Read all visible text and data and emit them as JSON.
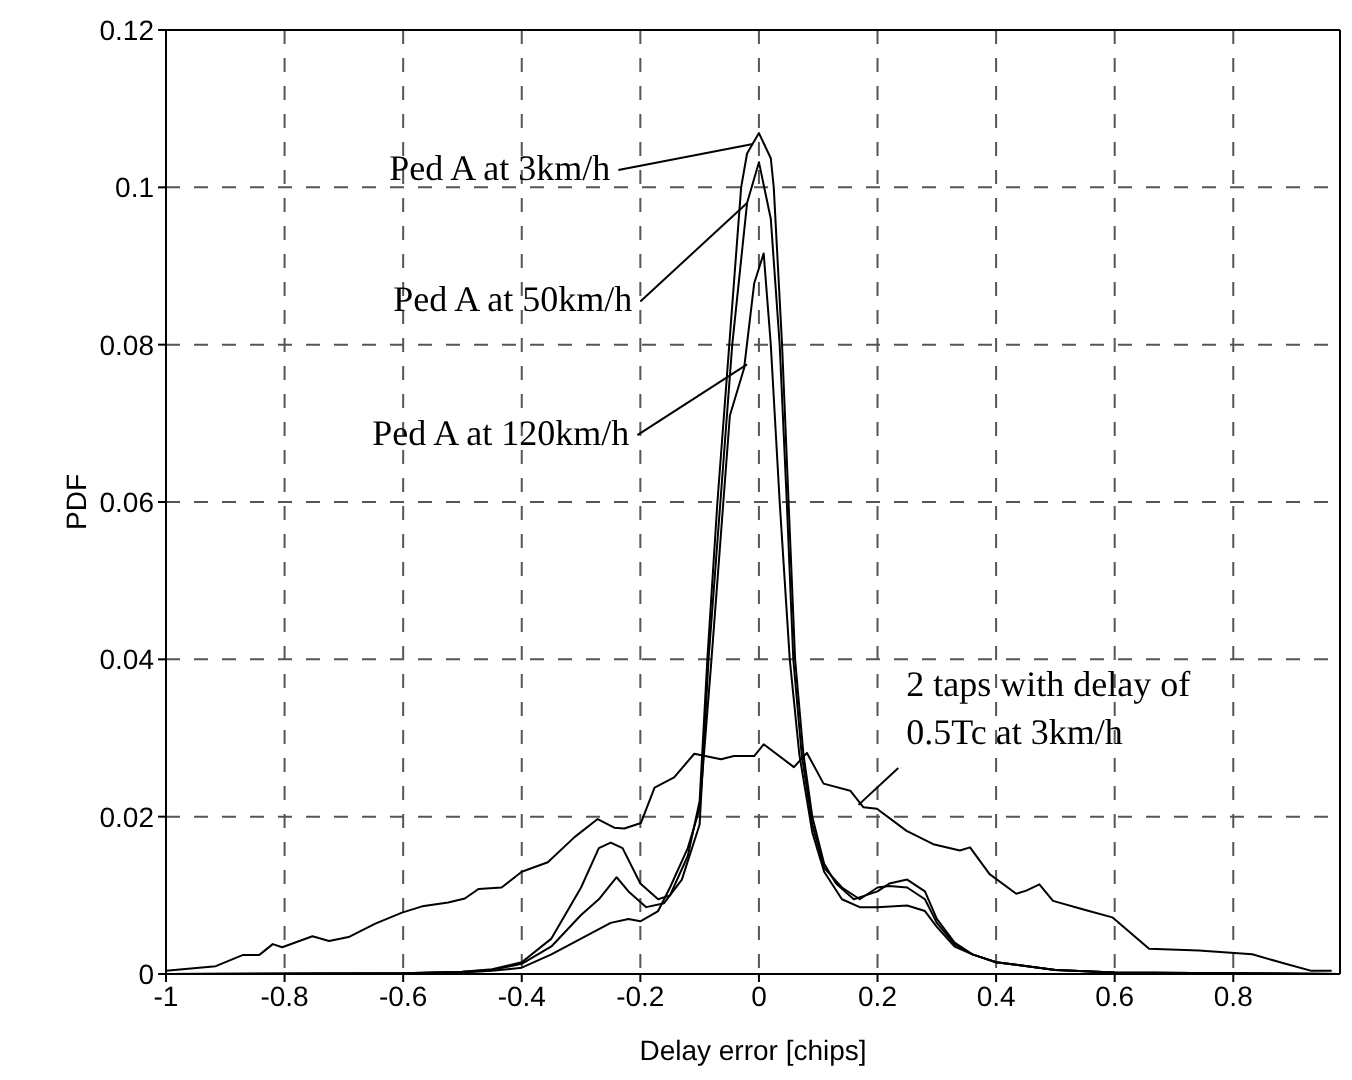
{
  "chart_data": {
    "type": "line",
    "xlabel": "Delay error [chips]",
    "ylabel": "PDF",
    "xlim": [
      -1,
      0.98
    ],
    "xticks": [
      -1,
      -0.8,
      -0.6,
      -0.4,
      -0.2,
      0,
      0.2,
      0.4,
      0.6,
      0.8
    ],
    "ylim": [
      0,
      0.12
    ],
    "yticks": [
      0,
      0.02,
      0.04,
      0.06,
      0.08,
      0.1,
      0.12
    ],
    "grid": true,
    "series": [
      {
        "name": "Ped A at 3km/h",
        "color": "#000000",
        "x": [
          -1,
          -0.6,
          -0.5,
          -0.45,
          -0.4,
          -0.35,
          -0.3,
          -0.27,
          -0.25,
          -0.23,
          -0.2,
          -0.17,
          -0.15,
          -0.12,
          -0.1,
          -0.087,
          -0.07,
          -0.05,
          -0.03,
          -0.02,
          0,
          0.02,
          0.025,
          0.039,
          0.05,
          0.061,
          0.075,
          0.09,
          0.11,
          0.13,
          0.16,
          0.18,
          0.2,
          0.22,
          0.25,
          0.28,
          0.3,
          0.33,
          0.36,
          0.4,
          0.5,
          0.6,
          0.98
        ],
        "values": [
          0,
          0.0001,
          0.0003,
          0.0006,
          0.0015,
          0.0045,
          0.011,
          0.016,
          0.0167,
          0.016,
          0.0115,
          0.0095,
          0.01,
          0.015,
          0.022,
          0.04,
          0.06,
          0.08,
          0.1,
          0.1043,
          0.1069,
          0.1037,
          0.1,
          0.08,
          0.06,
          0.04,
          0.028,
          0.02,
          0.014,
          0.0115,
          0.0095,
          0.01,
          0.0105,
          0.0115,
          0.012,
          0.0105,
          0.007,
          0.004,
          0.0025,
          0.0015,
          0.0005,
          0.0002,
          0
        ]
      },
      {
        "name": "Ped A at 50km/h",
        "color": "#000000",
        "x": [
          -1,
          -0.6,
          -0.5,
          -0.45,
          -0.4,
          -0.35,
          -0.3,
          -0.27,
          -0.24,
          -0.22,
          -0.19,
          -0.16,
          -0.13,
          -0.1,
          -0.085,
          -0.065,
          -0.045,
          -0.02,
          0,
          0.02,
          0.035,
          0.047,
          0.058,
          0.072,
          0.09,
          0.11,
          0.14,
          0.17,
          0.2,
          0.22,
          0.25,
          0.28,
          0.3,
          0.33,
          0.36,
          0.4,
          0.5,
          0.6,
          0.98
        ],
        "values": [
          0,
          0.0001,
          0.0003,
          0.0005,
          0.0013,
          0.0035,
          0.0075,
          0.0095,
          0.0123,
          0.0105,
          0.0085,
          0.009,
          0.012,
          0.019,
          0.04,
          0.06,
          0.08,
          0.098,
          0.1032,
          0.096,
          0.08,
          0.06,
          0.04,
          0.028,
          0.019,
          0.0135,
          0.011,
          0.0095,
          0.011,
          0.0112,
          0.011,
          0.0095,
          0.0065,
          0.0038,
          0.0025,
          0.0015,
          0.0005,
          0.0002,
          0
        ]
      },
      {
        "name": "Ped A at 120km/h",
        "color": "#000000",
        "x": [
          -1,
          -0.6,
          -0.5,
          -0.45,
          -0.4,
          -0.35,
          -0.3,
          -0.25,
          -0.22,
          -0.2,
          -0.17,
          -0.15,
          -0.12,
          -0.1,
          -0.08,
          -0.065,
          -0.049,
          -0.025,
          -0.008,
          0.008,
          0.02,
          0.035,
          0.052,
          0.068,
          0.09,
          0.11,
          0.14,
          0.17,
          0.2,
          0.25,
          0.28,
          0.3,
          0.33,
          0.36,
          0.4,
          0.5,
          0.6,
          0.98
        ],
        "values": [
          0,
          0.0001,
          0.0002,
          0.0004,
          0.0008,
          0.0025,
          0.0045,
          0.0065,
          0.007,
          0.0067,
          0.008,
          0.011,
          0.016,
          0.021,
          0.04,
          0.055,
          0.071,
          0.077,
          0.0878,
          0.0916,
          0.08,
          0.06,
          0.04,
          0.028,
          0.018,
          0.013,
          0.0095,
          0.0085,
          0.0085,
          0.0087,
          0.008,
          0.006,
          0.0035,
          0.0025,
          0.0015,
          0.0005,
          0.0002,
          0
        ]
      },
      {
        "name": "2 taps with delay of 0.5Tc at 3km/h",
        "color": "#000000",
        "x": [
          -1,
          -0.916,
          -0.871,
          -0.843,
          -0.82,
          -0.804,
          -0.753,
          -0.725,
          -0.692,
          -0.647,
          -0.602,
          -0.568,
          -0.524,
          -0.496,
          -0.473,
          -0.434,
          -0.4,
          -0.356,
          -0.311,
          -0.272,
          -0.244,
          -0.227,
          -0.199,
          -0.176,
          -0.143,
          -0.109,
          -0.064,
          -0.042,
          -0.008,
          0.008,
          0.059,
          0.081,
          0.109,
          0.154,
          0.176,
          0.199,
          0.249,
          0.294,
          0.339,
          0.356,
          0.389,
          0.434,
          0.451,
          0.473,
          0.496,
          0.552,
          0.596,
          0.658,
          0.742,
          0.832,
          0.888,
          0.932,
          0.966
        ],
        "values": [
          0.0004,
          0.001,
          0.0024,
          0.0024,
          0.0038,
          0.0034,
          0.0048,
          0.0042,
          0.0047,
          0.0064,
          0.0078,
          0.0086,
          0.0091,
          0.0096,
          0.0108,
          0.011,
          0.013,
          0.0142,
          0.0174,
          0.0197,
          0.0186,
          0.0185,
          0.0192,
          0.0237,
          0.025,
          0.028,
          0.0273,
          0.0277,
          0.0277,
          0.0292,
          0.0263,
          0.0281,
          0.0242,
          0.0233,
          0.0212,
          0.021,
          0.0182,
          0.0165,
          0.0157,
          0.0161,
          0.0127,
          0.0102,
          0.0106,
          0.0114,
          0.0093,
          0.0081,
          0.0072,
          0.0032,
          0.003,
          0.0025,
          0.0013,
          0.0004,
          0.0004
        ]
      }
    ]
  }
}
